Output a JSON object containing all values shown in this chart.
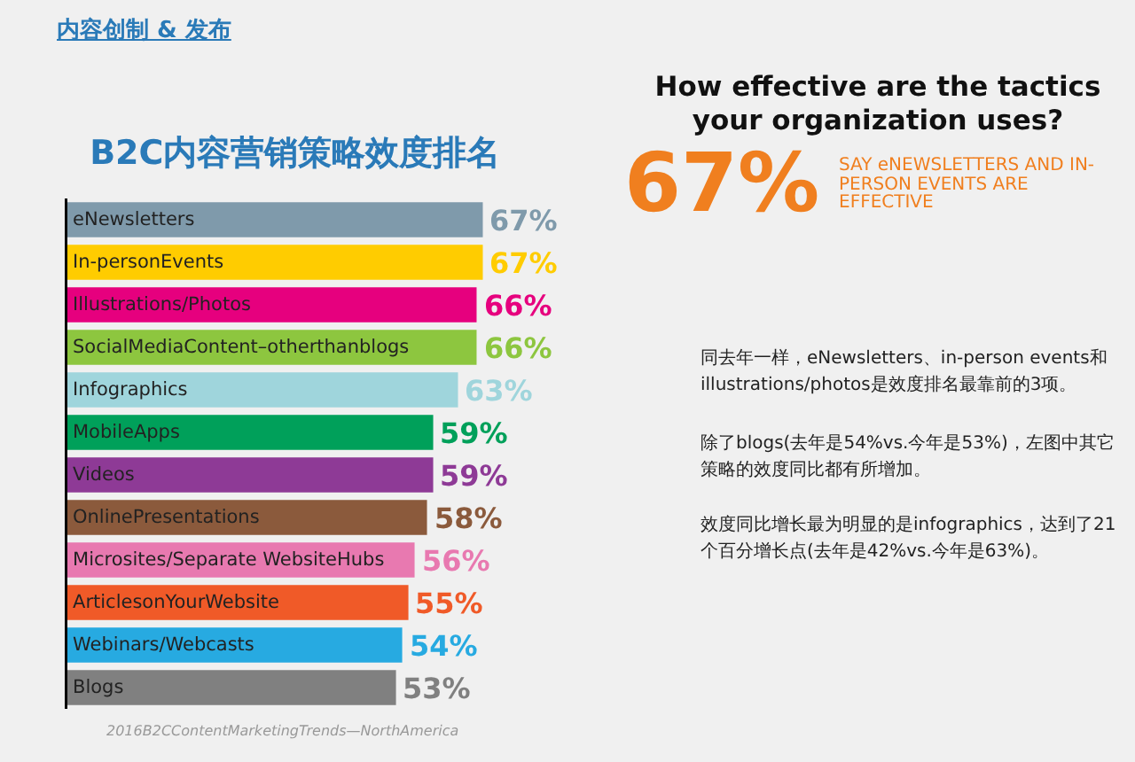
{
  "chart_data": {
    "type": "bar",
    "orientation": "horizontal",
    "title": "B2C内容营销策略效度排名",
    "categories": [
      "eNewsletters",
      "In-personEvents",
      "Illustrations/Photos",
      "SocialMediaContent–otherthanblogs",
      "Infographics",
      "MobileApps",
      "Videos",
      "OnlinePresentations",
      "Microsites/Separate WebsiteHubs",
      "ArticlesonYourWebsite",
      "Webinars/Webcasts",
      "Blogs"
    ],
    "values": [
      67,
      67,
      66,
      66,
      63,
      59,
      59,
      58,
      56,
      55,
      54,
      53
    ],
    "value_labels": [
      "67%",
      "67%",
      "66%",
      "66%",
      "63%",
      "59%",
      "59%",
      "58%",
      "56%",
      "55%",
      "54%",
      "53%"
    ],
    "colors": [
      "#7f9aab",
      "#ffcc00",
      "#e6007e",
      "#8dc63f",
      "#9fd5dc",
      "#00a05a",
      "#8e3a96",
      "#8b5a3c",
      "#e879b0",
      "#f05a28",
      "#27aae1",
      "#808080"
    ],
    "tick_labels": false,
    "annotations": [
      "内容创制 & 发布",
      "How effective are the tactics your organization uses?",
      "67%",
      "SAY eNEWSLETTERS AND IN-PERSON EVENTS ARE EFFECTIVE",
      "同去年一样，eNewsletters、in-person events和illustrations/photos是效度排名最靠前的3项。",
      "除了blogs(去年是54%vs.今年是53%)，左图中其它策略的效度同比都有所增加。",
      "效度同比增长最为明显的是infographics，达到了21个百分增长点(去年是42%vs.今年是63%)。",
      "2016B2CContentMarketingTrends—NorthAmerica"
    ]
  }
}
